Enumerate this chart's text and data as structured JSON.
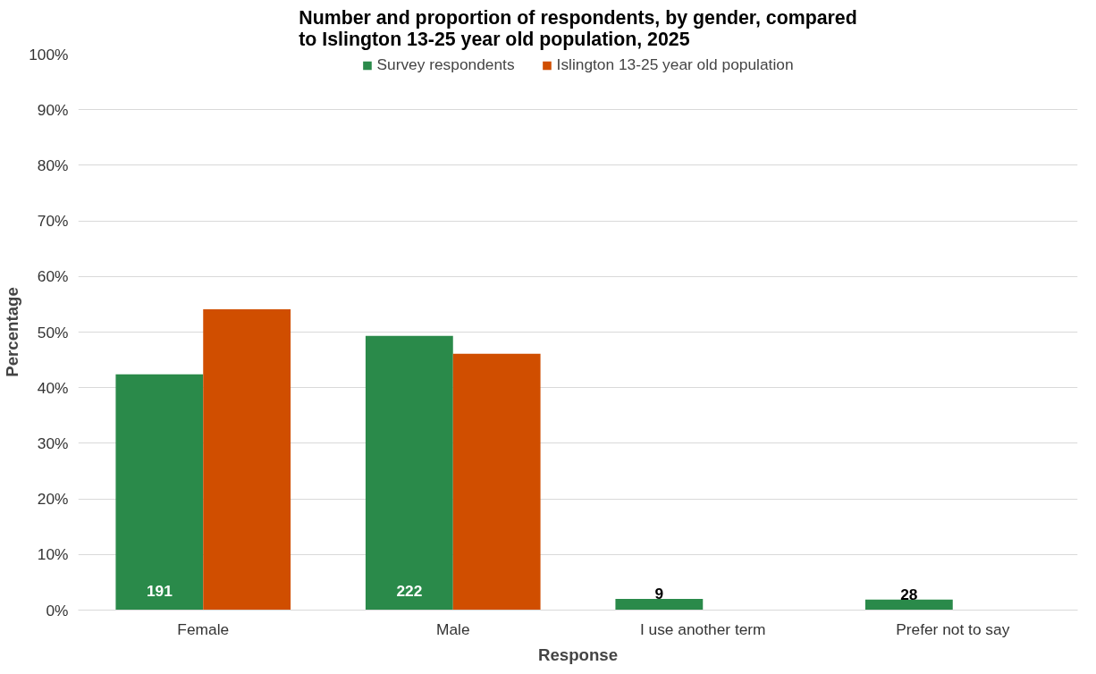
{
  "chart_data": {
    "type": "bar",
    "title": "Number and proportion of respondents, by gender, compared to Islington 13-25 year old population, 2025",
    "xlabel": "Response",
    "ylabel": "Percentage",
    "categories": [
      "Female",
      "Male",
      "I use another term",
      "Prefer not to say"
    ],
    "series": [
      {
        "name": "Survey respondents",
        "color": "#2a8a4a",
        "values": [
          42.4,
          49.3,
          2.0,
          1.9
        ]
      },
      {
        "name": "Islington 13-25 year old population",
        "color": "#d04e00",
        "values": [
          54.1,
          46.1,
          null,
          null
        ]
      }
    ],
    "ylim": [
      0,
      100
    ],
    "yticks": [
      {
        "value": 0,
        "label": "0%"
      },
      {
        "value": 10,
        "label": "10%"
      },
      {
        "value": 20,
        "label": "20%"
      },
      {
        "value": 30,
        "label": "30%"
      },
      {
        "value": 40,
        "label": "40%"
      },
      {
        "value": 50,
        "label": "50%"
      },
      {
        "value": 60,
        "label": "60%"
      },
      {
        "value": 70,
        "label": "70%"
      },
      {
        "value": 80,
        "label": "80%"
      },
      {
        "value": 90,
        "label": "90%"
      },
      {
        "value": 100,
        "label": "100%"
      }
    ],
    "grid": "y",
    "legend": "top",
    "annotations": [
      {
        "text": "191",
        "x": "Female",
        "y": 3.5
      },
      {
        "text": "222",
        "x": "Male",
        "y": 3.5
      },
      {
        "text": "9",
        "x": "I use another term",
        "y": 2.0
      },
      {
        "text": "28",
        "x": "Prefer not to say",
        "y": 1.9
      }
    ]
  }
}
